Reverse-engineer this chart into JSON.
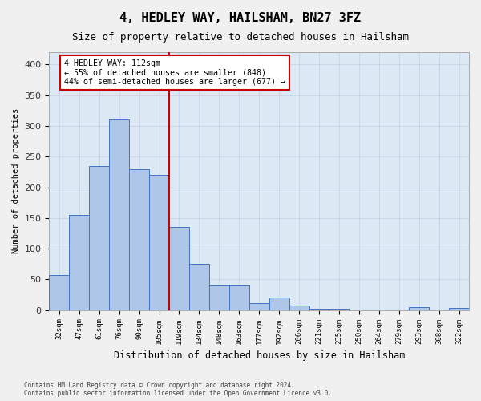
{
  "title": "4, HEDLEY WAY, HAILSHAM, BN27 3FZ",
  "subtitle": "Size of property relative to detached houses in Hailsham",
  "xlabel": "Distribution of detached houses by size in Hailsham",
  "ylabel": "Number of detached properties",
  "categories": [
    "32sqm",
    "47sqm",
    "61sqm",
    "76sqm",
    "90sqm",
    "105sqm",
    "119sqm",
    "134sqm",
    "148sqm",
    "163sqm",
    "177sqm",
    "192sqm",
    "206sqm",
    "221sqm",
    "235sqm",
    "250sqm",
    "264sqm",
    "279sqm",
    "293sqm",
    "308sqm",
    "322sqm"
  ],
  "values": [
    57,
    155,
    235,
    310,
    230,
    220,
    135,
    75,
    42,
    42,
    12,
    20,
    8,
    2,
    2,
    0,
    0,
    0,
    5,
    0,
    3
  ],
  "bar_color": "#aec6e8",
  "bar_edge_color": "#4472c4",
  "vline_position": 5.5,
  "vline_color": "#cc0000",
  "annotation_text_line1": "4 HEDLEY WAY: 112sqm",
  "annotation_text_line2": "← 55% of detached houses are smaller (848)",
  "annotation_text_line3": "44% of semi-detached houses are larger (677) →",
  "annotation_box_facecolor": "#ffffff",
  "annotation_box_edgecolor": "#cc0000",
  "ylim": [
    0,
    420
  ],
  "yticks": [
    0,
    50,
    100,
    150,
    200,
    250,
    300,
    350,
    400
  ],
  "grid_color": "#c8d4e8",
  "plot_bg_color": "#dce8f4",
  "fig_bg_color": "#f0f0f0",
  "title_fontsize": 11,
  "subtitle_fontsize": 9,
  "footer_line1": "Contains HM Land Registry data © Crown copyright and database right 2024.",
  "footer_line2": "Contains public sector information licensed under the Open Government Licence v3.0."
}
